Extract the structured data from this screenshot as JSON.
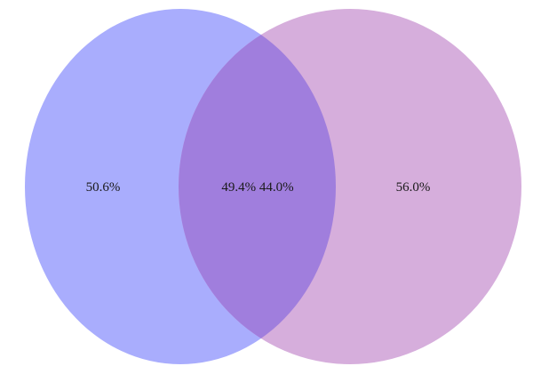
{
  "venn": {
    "sets": [
      {
        "key": "left",
        "color": "#a9adfd"
      },
      {
        "key": "right",
        "color": "#d6aedc"
      }
    ],
    "overlap_color": "#a07edd",
    "labels": {
      "left_only": "50.6%",
      "overlap": "49.4% 44.0%",
      "right_only": "56.0%"
    }
  }
}
